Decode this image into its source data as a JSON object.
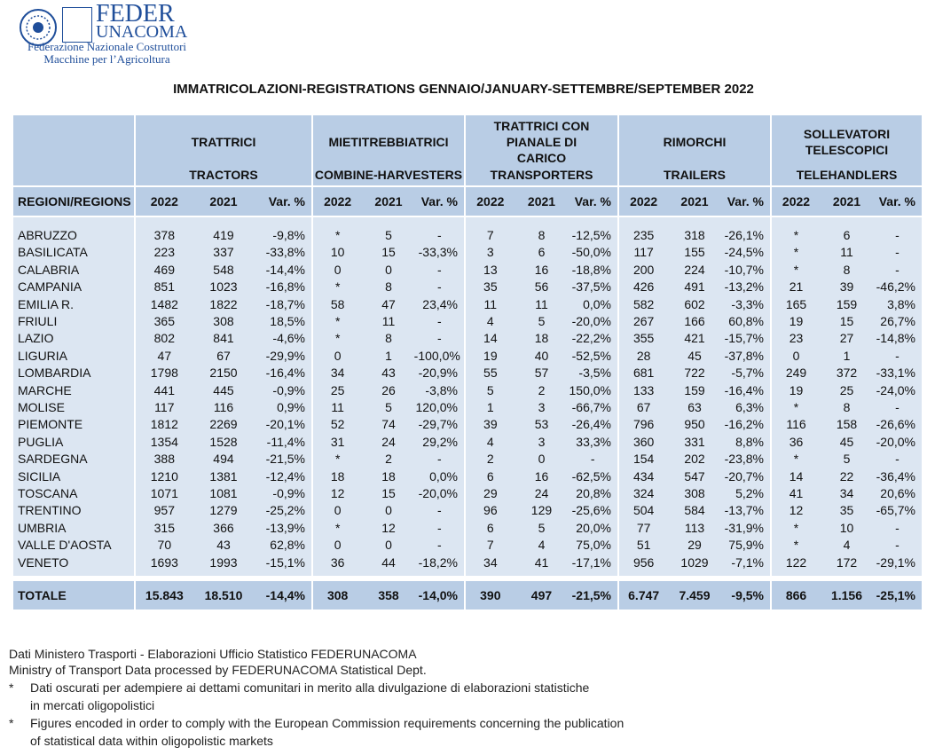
{
  "logo": {
    "name1": "FEDER",
    "name2": "UNACOMA",
    "line1": "Federazione Nazionale Costruttori",
    "line2": "Macchine per l’Agricoltura"
  },
  "title": "IMMATRICOLAZIONI-REGISTRATIONS GENNAIO/JANUARY-SETTEMBRE/SEPTEMBER 2022",
  "table": {
    "region_header": "REGIONI/REGIONS",
    "groups": [
      {
        "it": "TRATTRICI",
        "en": "TRACTORS"
      },
      {
        "it": "MIETITREBBIATRICI",
        "en": "COMBINE-HARVESTERS"
      },
      {
        "it": "TRATTRICI CON PIANALE DI CARICO",
        "en": "TRANSPORTERS"
      },
      {
        "it": "RIMORCHI",
        "en": "TRAILERS"
      },
      {
        "it": "SOLLEVATORI TELESCOPICI",
        "en": "TELEHANDLERS"
      }
    ],
    "subheaders": [
      "2022",
      "2021",
      "Var. %"
    ],
    "rows": [
      [
        "ABRUZZO",
        "378",
        "419",
        "-9,8%",
        "*",
        "5",
        "-",
        "7",
        "8",
        "-12,5%",
        "235",
        "318",
        "-26,1%",
        "*",
        "6",
        "-"
      ],
      [
        "BASILICATA",
        "223",
        "337",
        "-33,8%",
        "10",
        "15",
        "-33,3%",
        "3",
        "6",
        "-50,0%",
        "117",
        "155",
        "-24,5%",
        "*",
        "11",
        "-"
      ],
      [
        "CALABRIA",
        "469",
        "548",
        "-14,4%",
        "0",
        "0",
        "-",
        "13",
        "16",
        "-18,8%",
        "200",
        "224",
        "-10,7%",
        "*",
        "8",
        "-"
      ],
      [
        "CAMPANIA",
        "851",
        "1023",
        "-16,8%",
        "*",
        "8",
        "-",
        "35",
        "56",
        "-37,5%",
        "426",
        "491",
        "-13,2%",
        "21",
        "39",
        "-46,2%"
      ],
      [
        "EMILIA R.",
        "1482",
        "1822",
        "-18,7%",
        "58",
        "47",
        "23,4%",
        "11",
        "11",
        "0,0%",
        "582",
        "602",
        "-3,3%",
        "165",
        "159",
        "3,8%"
      ],
      [
        "FRIULI",
        "365",
        "308",
        "18,5%",
        "*",
        "11",
        "-",
        "4",
        "5",
        "-20,0%",
        "267",
        "166",
        "60,8%",
        "19",
        "15",
        "26,7%"
      ],
      [
        "LAZIO",
        "802",
        "841",
        "-4,6%",
        "*",
        "8",
        "-",
        "14",
        "18",
        "-22,2%",
        "355",
        "421",
        "-15,7%",
        "23",
        "27",
        "-14,8%"
      ],
      [
        "LIGURIA",
        "47",
        "67",
        "-29,9%",
        "0",
        "1",
        "-100,0%",
        "19",
        "40",
        "-52,5%",
        "28",
        "45",
        "-37,8%",
        "0",
        "1",
        "-"
      ],
      [
        "LOMBARDIA",
        "1798",
        "2150",
        "-16,4%",
        "34",
        "43",
        "-20,9%",
        "55",
        "57",
        "-3,5%",
        "681",
        "722",
        "-5,7%",
        "249",
        "372",
        "-33,1%"
      ],
      [
        "MARCHE",
        "441",
        "445",
        "-0,9%",
        "25",
        "26",
        "-3,8%",
        "5",
        "2",
        "150,0%",
        "133",
        "159",
        "-16,4%",
        "19",
        "25",
        "-24,0%"
      ],
      [
        "MOLISE",
        "117",
        "116",
        "0,9%",
        "11",
        "5",
        "120,0%",
        "1",
        "3",
        "-66,7%",
        "67",
        "63",
        "6,3%",
        "*",
        "8",
        "-"
      ],
      [
        "PIEMONTE",
        "1812",
        "2269",
        "-20,1%",
        "52",
        "74",
        "-29,7%",
        "39",
        "53",
        "-26,4%",
        "796",
        "950",
        "-16,2%",
        "116",
        "158",
        "-26,6%"
      ],
      [
        "PUGLIA",
        "1354",
        "1528",
        "-11,4%",
        "31",
        "24",
        "29,2%",
        "4",
        "3",
        "33,3%",
        "360",
        "331",
        "8,8%",
        "36",
        "45",
        "-20,0%"
      ],
      [
        "SARDEGNA",
        "388",
        "494",
        "-21,5%",
        "*",
        "2",
        "-",
        "2",
        "0",
        "-",
        "154",
        "202",
        "-23,8%",
        "*",
        "5",
        "-"
      ],
      [
        "SICILIA",
        "1210",
        "1381",
        "-12,4%",
        "18",
        "18",
        "0,0%",
        "6",
        "16",
        "-62,5%",
        "434",
        "547",
        "-20,7%",
        "14",
        "22",
        "-36,4%"
      ],
      [
        "TOSCANA",
        "1071",
        "1081",
        "-0,9%",
        "12",
        "15",
        "-20,0%",
        "29",
        "24",
        "20,8%",
        "324",
        "308",
        "5,2%",
        "41",
        "34",
        "20,6%"
      ],
      [
        "TRENTINO",
        "957",
        "1279",
        "-25,2%",
        "0",
        "0",
        "-",
        "96",
        "129",
        "-25,6%",
        "504",
        "584",
        "-13,7%",
        "12",
        "35",
        "-65,7%"
      ],
      [
        "UMBRIA",
        "315",
        "366",
        "-13,9%",
        "*",
        "12",
        "-",
        "6",
        "5",
        "20,0%",
        "77",
        "113",
        "-31,9%",
        "*",
        "10",
        "-"
      ],
      [
        "VALLE D'AOSTA",
        "70",
        "43",
        "62,8%",
        "0",
        "0",
        "-",
        "7",
        "4",
        "75,0%",
        "51",
        "29",
        "75,9%",
        "*",
        "4",
        "-"
      ],
      [
        "VENETO",
        "1693",
        "1993",
        "-15,1%",
        "36",
        "44",
        "-18,2%",
        "34",
        "41",
        "-17,1%",
        "956",
        "1029",
        "-7,1%",
        "122",
        "172",
        "-29,1%"
      ]
    ],
    "total": [
      "TOTALE",
      "15.843",
      "18.510",
      "-14,4%",
      "308",
      "358",
      "-14,0%",
      "390",
      "497",
      "-21,5%",
      "6.747",
      "7.459",
      "-9,5%",
      "866",
      "1.156",
      "-25,1%"
    ]
  },
  "notes": {
    "source_it": "Dati Ministero Trasporti - Elaborazioni Ufficio Statistico FEDERUNACOMA",
    "source_en": "Ministry of Transport Data processed by FEDERUNACOMA Statistical Dept.",
    "footnotes": [
      {
        "mark": "*",
        "lines": [
          "Dati oscurati per adempiere ai dettami comunitari in merito alla divulgazione di elaborazioni statistiche",
          "in mercati oligopolistici"
        ]
      },
      {
        "mark": "*",
        "lines": [
          "Figures encoded in order to comply with the European Commission requirements concerning the publication",
          "of statistical data within oligopolistic markets"
        ]
      }
    ]
  }
}
